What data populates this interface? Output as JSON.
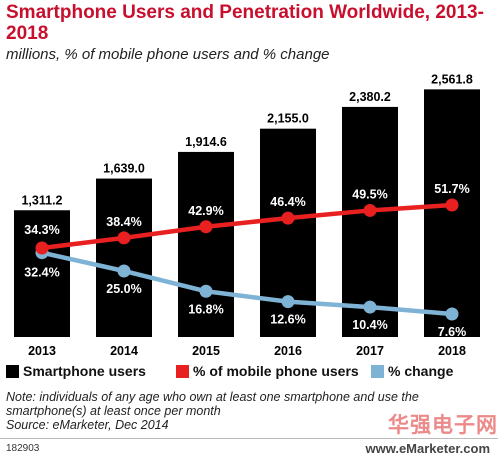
{
  "chart_data": {
    "type": "bar",
    "title": "Smartphone Users and Penetration Worldwide, 2013-2018",
    "subtitle": "millions, % of mobile phone users and % change",
    "categories": [
      "2013",
      "2014",
      "2015",
      "2016",
      "2017",
      "2018"
    ],
    "series": [
      {
        "name": "Smartphone users",
        "type": "bar",
        "color": "#000000",
        "values": [
          1311.2,
          1639.0,
          1914.6,
          2155.0,
          2380.2,
          2561.8
        ],
        "labels": [
          "1,311.2",
          "1,639.0",
          "1,914.6",
          "2,155.0",
          "2,380.2",
          "2,561.8"
        ]
      },
      {
        "name": "% of mobile phone users",
        "type": "line",
        "color": "#e8201f",
        "values": [
          34.3,
          38.4,
          42.9,
          46.4,
          49.5,
          51.7
        ],
        "labels": [
          "34.3%",
          "38.4%",
          "42.9%",
          "46.4%",
          "49.5%",
          "51.7%"
        ]
      },
      {
        "name": "% change",
        "type": "line",
        "color": "#7fb3d5",
        "values": [
          32.4,
          25.0,
          16.8,
          12.6,
          10.4,
          7.6
        ],
        "labels": [
          "32.4%",
          "25.0%",
          "16.8%",
          "12.6%",
          "10.4%",
          "7.6%"
        ]
      }
    ],
    "ylim": [
      0,
      2700
    ],
    "legend_position": "bottom"
  },
  "notes": {
    "line1": "Note: individuals of any age who own at least one smartphone and use the",
    "line2": "smartphone(s) at least once per month",
    "line3": "Source: eMarketer, Dec 2014"
  },
  "footer": {
    "code": "182903",
    "brand": "www.eMarketer.com"
  },
  "watermark": "华强电子网"
}
